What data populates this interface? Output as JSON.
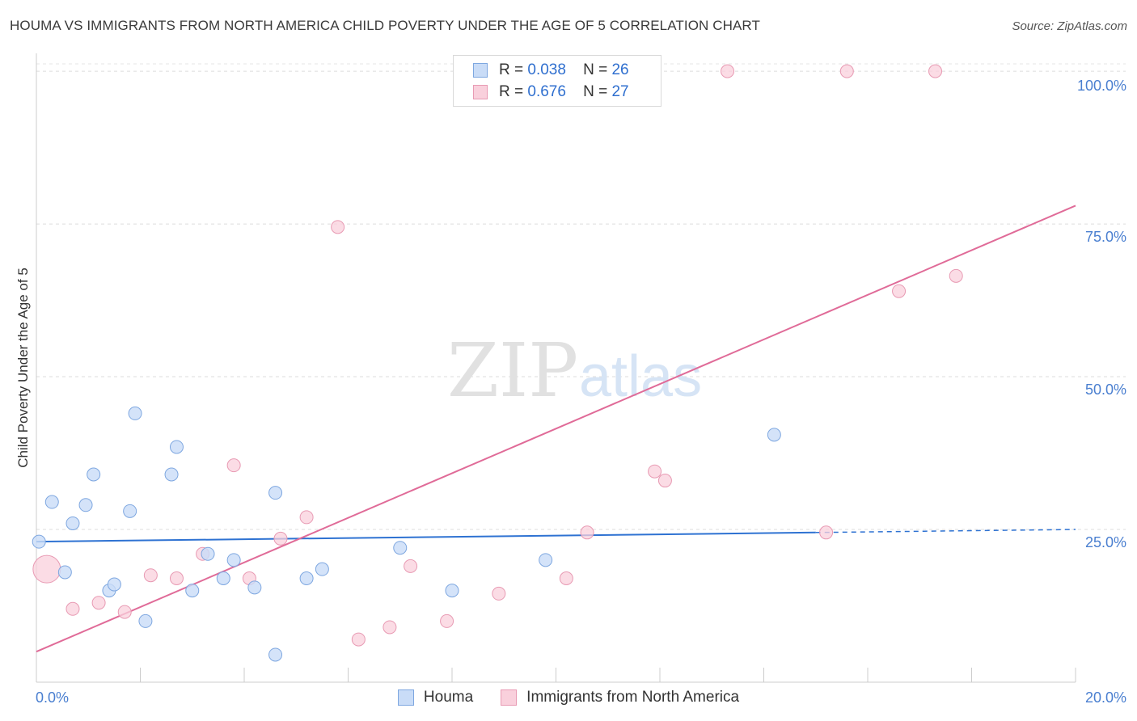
{
  "title": "HOUMA VS IMMIGRANTS FROM NORTH AMERICA CHILD POVERTY UNDER THE AGE OF 5 CORRELATION CHART",
  "source": "Source: ZipAtlas.com",
  "watermark": {
    "zip": "ZIP",
    "atlas": "atlas"
  },
  "colors": {
    "houma_fill": "#c9dcf7",
    "houma_stroke": "#7ea7e0",
    "houma_line": "#2e72d2",
    "imm_fill": "#f9d0dc",
    "imm_stroke": "#e89ab3",
    "imm_line": "#e06b98"
  },
  "legend": {
    "rows": [
      {
        "r_label": "R =",
        "r_value": "0.038",
        "n_label": "N =",
        "n_value": "26"
      },
      {
        "r_label": "R =",
        "r_value": "0.676",
        "n_label": "N =",
        "n_value": "27"
      }
    ]
  },
  "chart_data": {
    "type": "scatter",
    "ylabel": "Child Poverty Under the Age of 5",
    "xlim": [
      0,
      20
    ],
    "ylim": [
      0,
      102
    ],
    "y_ticks": [
      25,
      50,
      75,
      100
    ],
    "y_tick_labels": [
      "25.0%",
      "50.0%",
      "75.0%",
      "100.0%"
    ],
    "x_tick_labels": [
      "0.0%",
      "20.0%"
    ],
    "grid": "horizontal dashed",
    "legend_placement": "top-center",
    "series": [
      {
        "name": "Houma",
        "points": [
          [
            0.05,
            23.0
          ],
          [
            0.3,
            29.5
          ],
          [
            0.55,
            18.0
          ],
          [
            0.7,
            26.0
          ],
          [
            0.95,
            29.0
          ],
          [
            1.1,
            34.0
          ],
          [
            1.4,
            15.0
          ],
          [
            1.5,
            16.0
          ],
          [
            1.8,
            28.0
          ],
          [
            1.9,
            44.0
          ],
          [
            2.1,
            10.0
          ],
          [
            2.6,
            34.0
          ],
          [
            2.7,
            38.5
          ],
          [
            3.0,
            15.0
          ],
          [
            3.3,
            21.0
          ],
          [
            3.6,
            17.0
          ],
          [
            3.8,
            20.0
          ],
          [
            4.2,
            15.5
          ],
          [
            4.6,
            4.5
          ],
          [
            4.6,
            31.0
          ],
          [
            5.2,
            17.0
          ],
          [
            5.5,
            18.5
          ],
          [
            7.0,
            22.0
          ],
          [
            8.0,
            15.0
          ],
          [
            9.8,
            20.0
          ],
          [
            14.2,
            40.5
          ]
        ],
        "trend": {
          "x0": 0,
          "y0": 23.0,
          "x1": 15.0,
          "y1": 24.5,
          "dash_to_x": 20,
          "dash_to_y": 25.0
        }
      },
      {
        "name": "Immigrants from North America",
        "points": [
          [
            0.2,
            18.5
          ],
          [
            0.7,
            12.0
          ],
          [
            1.2,
            13.0
          ],
          [
            1.7,
            11.5
          ],
          [
            2.2,
            17.5
          ],
          [
            2.7,
            17.0
          ],
          [
            3.2,
            21.0
          ],
          [
            3.8,
            35.5
          ],
          [
            4.1,
            17.0
          ],
          [
            4.7,
            23.5
          ],
          [
            5.2,
            27.0
          ],
          [
            5.8,
            74.5
          ],
          [
            6.2,
            7.0
          ],
          [
            6.8,
            9.0
          ],
          [
            7.2,
            19.0
          ],
          [
            7.9,
            10.0
          ],
          [
            8.9,
            14.5
          ],
          [
            10.2,
            17.0
          ],
          [
            10.6,
            24.5
          ],
          [
            11.9,
            34.5
          ],
          [
            12.1,
            33.0
          ],
          [
            13.3,
            100.0
          ],
          [
            15.2,
            24.5
          ],
          [
            15.6,
            100.0
          ],
          [
            16.6,
            64.0
          ],
          [
            17.3,
            100.0
          ],
          [
            17.7,
            66.5
          ]
        ],
        "trend": {
          "x0": 0,
          "y0": 5.0,
          "x1": 20,
          "y1": 78.0
        }
      }
    ]
  }
}
